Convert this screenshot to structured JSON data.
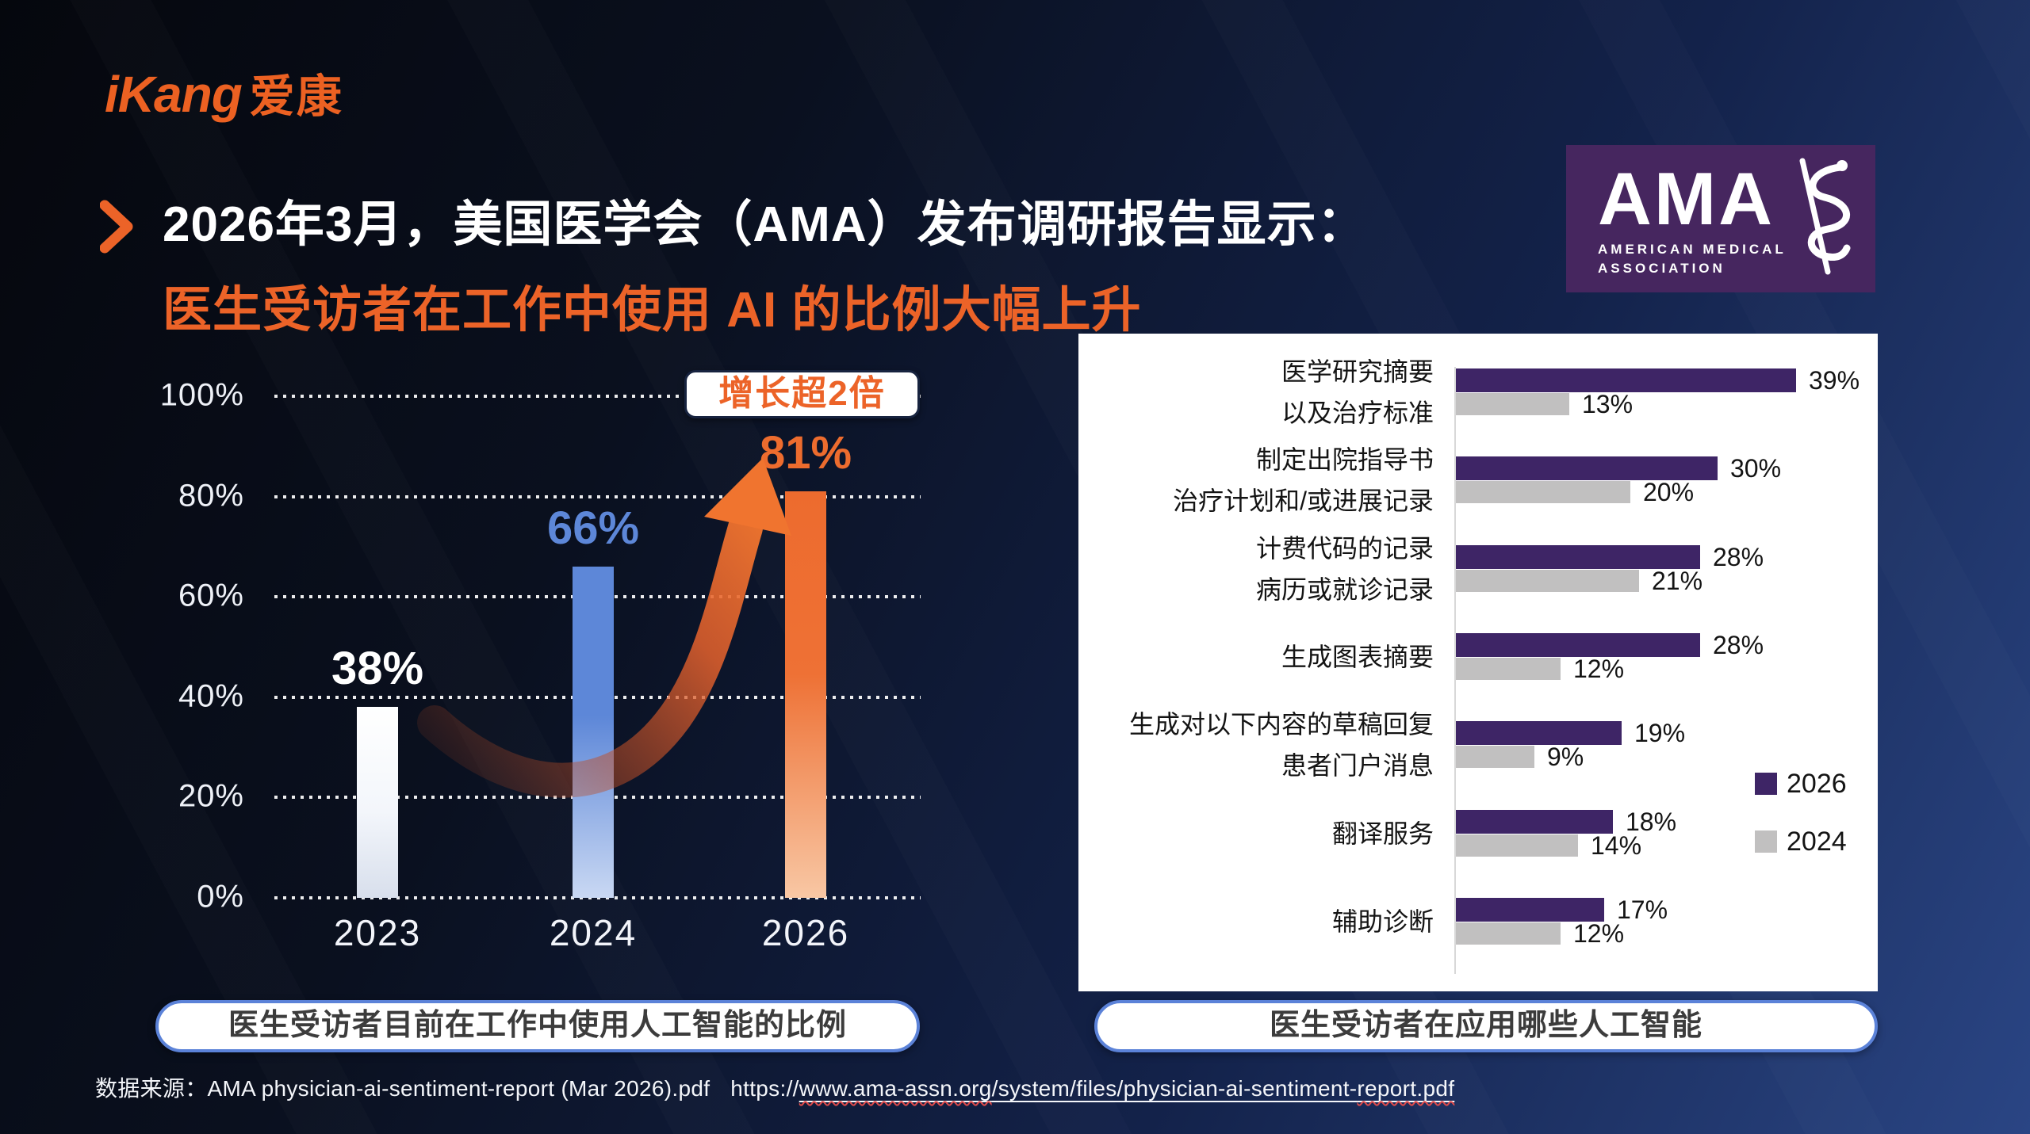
{
  "brand": {
    "latin": "iKang",
    "cjk": "爱康",
    "color": "#EC6122"
  },
  "title": {
    "line1": "2026年3月，美国医学会（AMA）发布调研报告显示：",
    "line2": "医生受访者在工作中使用 AI 的比例大幅上升"
  },
  "ama_logo": {
    "acronym": "AMA",
    "line1": "AMERICAN MEDICAL",
    "line2": "ASSOCIATION",
    "bg_color": "#46265F"
  },
  "chart_data": [
    {
      "type": "bar",
      "title": "医生受访者目前在工作中使用人工智能的比例",
      "categories": [
        "2023",
        "2024",
        "2026"
      ],
      "values": [
        38,
        66,
        81
      ],
      "value_labels": [
        "38%",
        "66%",
        "81%"
      ],
      "value_colors": [
        "#ffffff",
        "#5d87d8",
        "#ed6c2e"
      ],
      "bar_colors": [
        "#ffffff",
        "#5d87d8",
        "#ed6b2e"
      ],
      "annotation": "增长超2倍",
      "ylim": [
        0,
        100
      ],
      "yticks": [
        "100%",
        "80%",
        "60%",
        "40%",
        "20%",
        "0%"
      ],
      "grid": "dotted horizontal white",
      "xlabel": "",
      "ylabel": ""
    },
    {
      "type": "bar-horizontal-grouped",
      "title": "医生受访者在应用哪些人工智能",
      "categories": [
        [
          "医学研究摘要",
          "以及治疗标准"
        ],
        [
          "制定出院指导书",
          "治疗计划和/或进展记录"
        ],
        [
          "计费代码的记录",
          "病历或就诊记录"
        ],
        [
          "生成图表摘要"
        ],
        [
          "生成对以下内容的草稿回复",
          "患者门户消息"
        ],
        [
          "翻译服务"
        ],
        [
          "辅助诊断"
        ]
      ],
      "series": [
        {
          "name": "2026",
          "color": "#3E2566",
          "values": [
            39,
            30,
            28,
            28,
            19,
            18,
            17
          ]
        },
        {
          "name": "2024",
          "color": "#C1C0C0",
          "values": [
            13,
            20,
            21,
            12,
            9,
            14,
            12
          ]
        }
      ],
      "xlim": [
        0,
        45
      ],
      "legend_position": "right",
      "background": "#ffffff"
    }
  ],
  "source": {
    "label": "数据来源：",
    "file": "AMA physician-ai-sentiment-report (Mar 2026).pdf",
    "url_prefix": "https://",
    "url_seg1": "www.ama-assn.org",
    "url_seg2": "/system/files/physician-ai-sentiment-",
    "url_seg3": "report.pdf"
  }
}
